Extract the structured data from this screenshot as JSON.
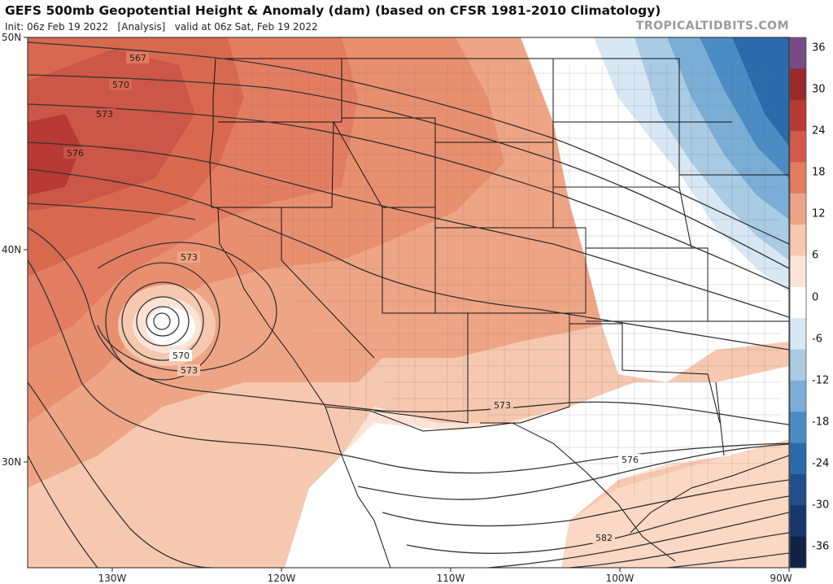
{
  "header": {
    "title": "GEFS 500mb Geopotential Height & Anomaly (dam) (based on CFSR 1981-2010 Climatology)",
    "subtitle": "Init: 06z Feb 19 2022   [Analysis]   valid at 06z Sat, Feb 19 2022",
    "watermark": "TROPICALTIDBITS.COM"
  },
  "axes": {
    "lat_labels": [
      "50N",
      "40N",
      "30N"
    ],
    "lon_labels": [
      "130W",
      "120W",
      "110W",
      "100W",
      "90W"
    ]
  },
  "colorbar": {
    "labels": [
      "36",
      "30",
      "24",
      "18",
      "12",
      "6",
      "0",
      "-6",
      "-12",
      "-18",
      "-24",
      "-30",
      "-36"
    ],
    "colors": [
      "#7a4a86",
      "#9a2a2a",
      "#b83a35",
      "#d25a48",
      "#e37d62",
      "#eea585",
      "#f6c8b0",
      "#fbe4d6",
      "#ffffff",
      "#d7e7f3",
      "#a9cbe4",
      "#7aaed6",
      "#4c8cc4",
      "#2c6aac",
      "#1f4e8c",
      "#17376a",
      "#0f2346"
    ]
  },
  "contour_labels": {
    "c567": "567",
    "c570_a": "570",
    "c573_a": "573",
    "c576_a": "576",
    "c573_low": "573",
    "c570_low": "570",
    "c573_low2": "573",
    "c573_tx": "573",
    "c576_tx": "576",
    "c582": "582"
  }
}
